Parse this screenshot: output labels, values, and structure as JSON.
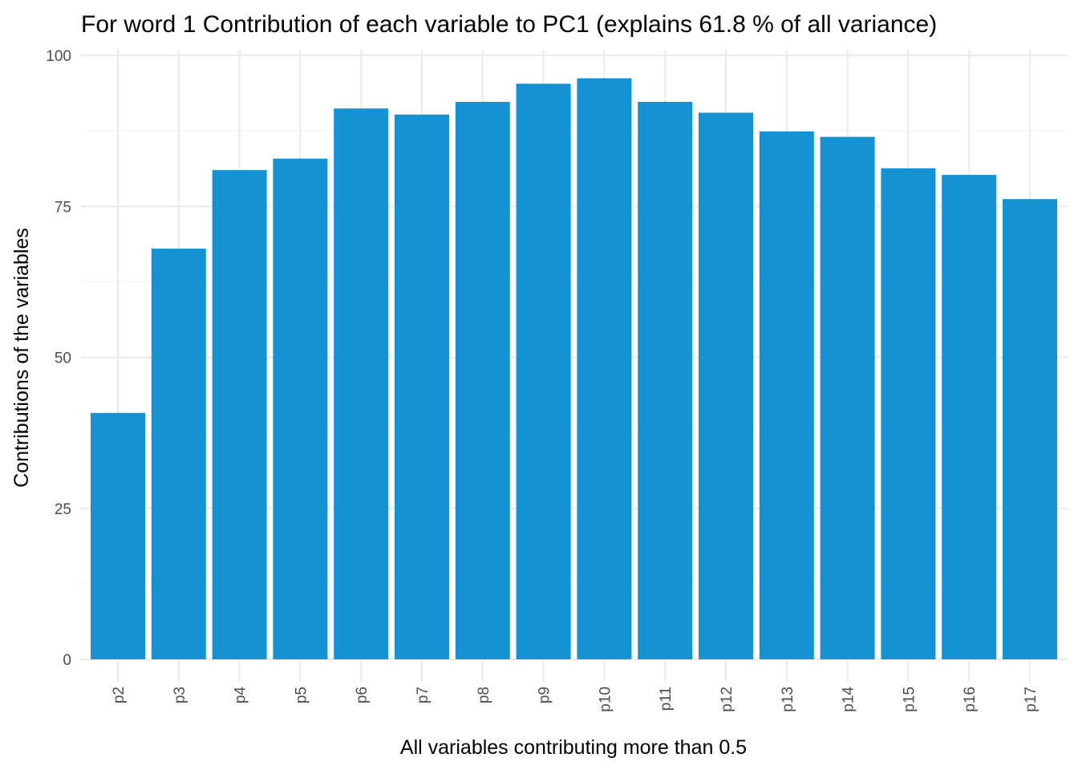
{
  "chart_data": {
    "type": "bar",
    "title": "For word 1 Contribution of each variable to PC1 (explains 61.8 % of all variance)",
    "xlabel": "All variables contributing more than 0.5",
    "ylabel": "Contributions of the variables",
    "categories": [
      "p2",
      "p3",
      "p4",
      "p5",
      "p6",
      "p7",
      "p8",
      "p9",
      "p10",
      "p11",
      "p12",
      "p13",
      "p14",
      "p15",
      "p16",
      "p17"
    ],
    "values": [
      40.8,
      68.0,
      81.0,
      82.9,
      91.2,
      90.2,
      92.3,
      95.3,
      96.2,
      92.3,
      90.5,
      87.4,
      86.5,
      81.3,
      80.2,
      76.2
    ],
    "ylim": [
      0,
      100
    ],
    "yticks": [
      0,
      25,
      50,
      75,
      100
    ],
    "grid": true,
    "bar_color": "#1492d3"
  }
}
